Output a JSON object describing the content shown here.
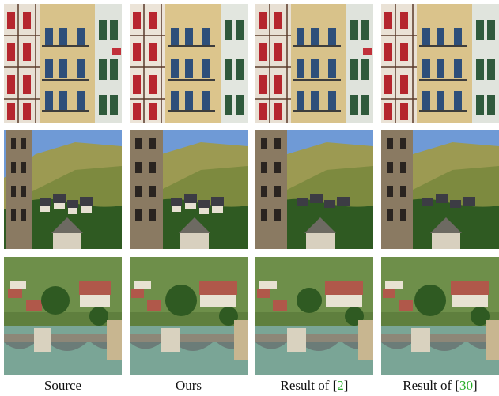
{
  "figure": {
    "columns": [
      {
        "id": "source",
        "caption": "Source",
        "ref": "",
        "suffix": ""
      },
      {
        "id": "ours",
        "caption": "Ours",
        "ref": "",
        "suffix": ""
      },
      {
        "id": "result2",
        "caption": "Result of [",
        "ref": "2",
        "suffix": "]"
      },
      {
        "id": "result30",
        "caption": "Result of [",
        "ref": "30",
        "suffix": "]"
      }
    ],
    "rows": [
      {
        "id": "building-facade"
      },
      {
        "id": "bell-tower-village"
      },
      {
        "id": "bridge-town"
      }
    ],
    "colors": {
      "citation": "#22aa22"
    }
  }
}
